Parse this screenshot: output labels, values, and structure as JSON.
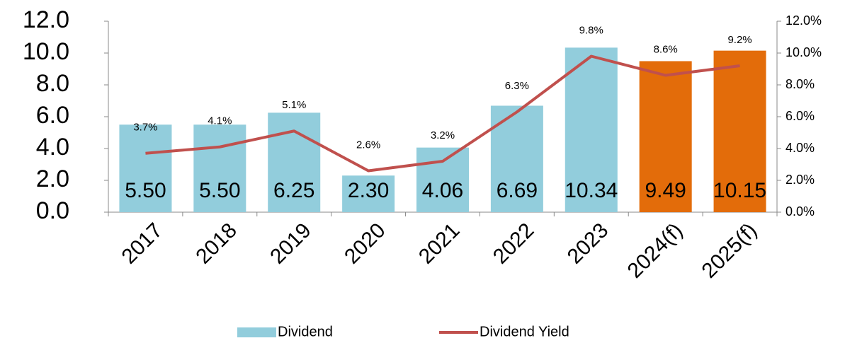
{
  "chart_data": {
    "type": "bar+line",
    "categories": [
      "2017",
      "2018",
      "2019",
      "2020",
      "2021",
      "2022",
      "2023",
      "2024(f)",
      "2025(f)"
    ],
    "series": [
      {
        "name": "Dividend",
        "type": "bar",
        "color": "#92cddc",
        "colors": [
          "#92cddc",
          "#92cddc",
          "#92cddc",
          "#92cddc",
          "#92cddc",
          "#92cddc",
          "#92cddc",
          "#e36c0a",
          "#e36c0a"
        ],
        "values": [
          5.5,
          5.5,
          6.25,
          2.3,
          4.06,
          6.69,
          10.34,
          9.49,
          10.15
        ],
        "value_labels": [
          "5.50",
          "5.50",
          "6.25",
          "2.30",
          "4.06",
          "6.69",
          "10.34",
          "9.49",
          "10.15"
        ]
      },
      {
        "name": "Dividend Yield",
        "type": "line",
        "axis": "y2",
        "color": "#c0504d",
        "values": [
          3.7,
          4.1,
          5.1,
          2.6,
          3.2,
          6.3,
          9.8,
          8.6,
          9.2
        ],
        "value_labels": [
          "3.7%",
          "4.1%",
          "5.1%",
          "2.6%",
          "3.2%",
          "6.3%",
          "9.8%",
          "8.6%",
          "9.2%"
        ]
      }
    ],
    "ylim": [
      0,
      12
    ],
    "yticks": [
      {
        "value": 0,
        "label": "0.0"
      },
      {
        "value": 2,
        "label": "2.0"
      },
      {
        "value": 4,
        "label": "4.0"
      },
      {
        "value": 6,
        "label": "6.0"
      },
      {
        "value": 8,
        "label": "8.0"
      },
      {
        "value": 10,
        "label": "10.0"
      },
      {
        "value": 12,
        "label": "12.0"
      }
    ],
    "y2lim": [
      0,
      12
    ],
    "y2ticks": [
      {
        "value": 0,
        "label": "0.0%"
      },
      {
        "value": 2,
        "label": "2.0%"
      },
      {
        "value": 4,
        "label": "4.0%"
      },
      {
        "value": 6,
        "label": "6.0%"
      },
      {
        "value": 8,
        "label": "8.0%"
      },
      {
        "value": 10,
        "label": "10.0%"
      },
      {
        "value": 12,
        "label": "12.0%"
      }
    ],
    "legend": "bottom"
  }
}
